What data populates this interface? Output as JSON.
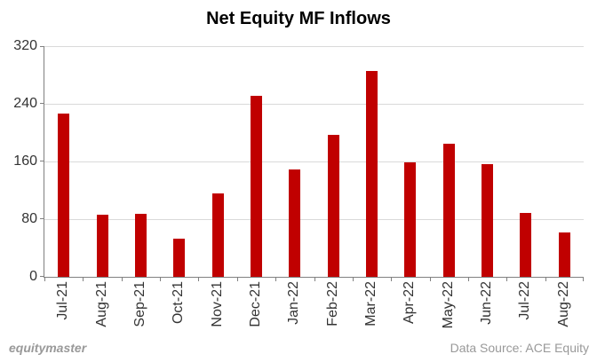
{
  "header": {
    "title": "Net Equity MF Inflows"
  },
  "footer": {
    "brand": "equitymaster",
    "source": "Data Source: ACE Equity"
  },
  "chart_data": {
    "type": "bar",
    "title": "Net Equity MF Inflows",
    "categories": [
      "Jul-21",
      "Aug-21",
      "Sep-21",
      "Oct-21",
      "Nov-21",
      "Dec-21",
      "Jan-22",
      "Feb-22",
      "Mar-22",
      "Apr-22",
      "May-22",
      "Jun-22",
      "Jul-22",
      "Aug-22"
    ],
    "values": [
      226,
      86,
      88,
      53,
      116,
      251,
      149,
      197,
      285,
      159,
      185,
      156,
      89,
      62
    ],
    "xlabel": "",
    "ylabel": "",
    "ylim": [
      0,
      320
    ],
    "yticks": [
      0,
      80,
      160,
      240,
      320
    ],
    "grid": true,
    "legend": "none",
    "colors": {
      "bar": "#C00000",
      "gridline": "#D9D9D9",
      "axis": "#808080",
      "tick_label": "#333333",
      "title": "#000000",
      "footer_text": "#999999",
      "background": "#FFFFFF"
    }
  }
}
